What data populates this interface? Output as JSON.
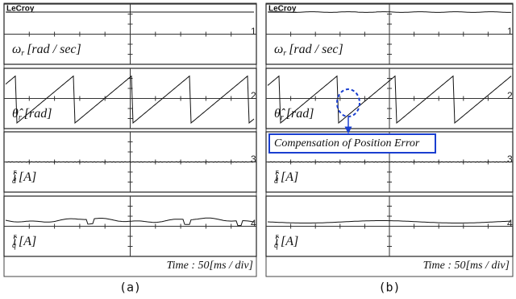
{
  "panels": [
    {
      "brand": "LeCroy",
      "traces": [
        {
          "symbol": "ω",
          "sub": "r",
          "unit": "[rad / sec]",
          "channel": "1"
        },
        {
          "symbol": "θ̂",
          "sub": "r",
          "unit": "[rad]",
          "channel": "2"
        },
        {
          "symbol": "î",
          "sub": "d",
          "sup": "r",
          "unit": "[A]",
          "channel": "3"
        },
        {
          "symbol": "î",
          "sub": "q",
          "sup": "r",
          "unit": "[A]",
          "channel": "4"
        }
      ],
      "time": "Time : 50[ms / div]",
      "caption": "(a)"
    },
    {
      "brand": "LeCroy",
      "traces": [
        {
          "symbol": "ω",
          "sub": "r",
          "unit": "[rad / sec]",
          "channel": "1"
        },
        {
          "symbol": "θ̂",
          "sub": "r",
          "unit": "[rad]",
          "channel": "2"
        },
        {
          "symbol": "î",
          "sub": "d",
          "sup": "r",
          "unit": "[A]",
          "channel": "3"
        },
        {
          "symbol": "î",
          "sub": "q",
          "sup": "r",
          "unit": "[A]",
          "channel": "4"
        }
      ],
      "time": "Time : 50[ms / div]",
      "caption": "(b)",
      "annotation": "Compensation of Position Error"
    }
  ]
}
